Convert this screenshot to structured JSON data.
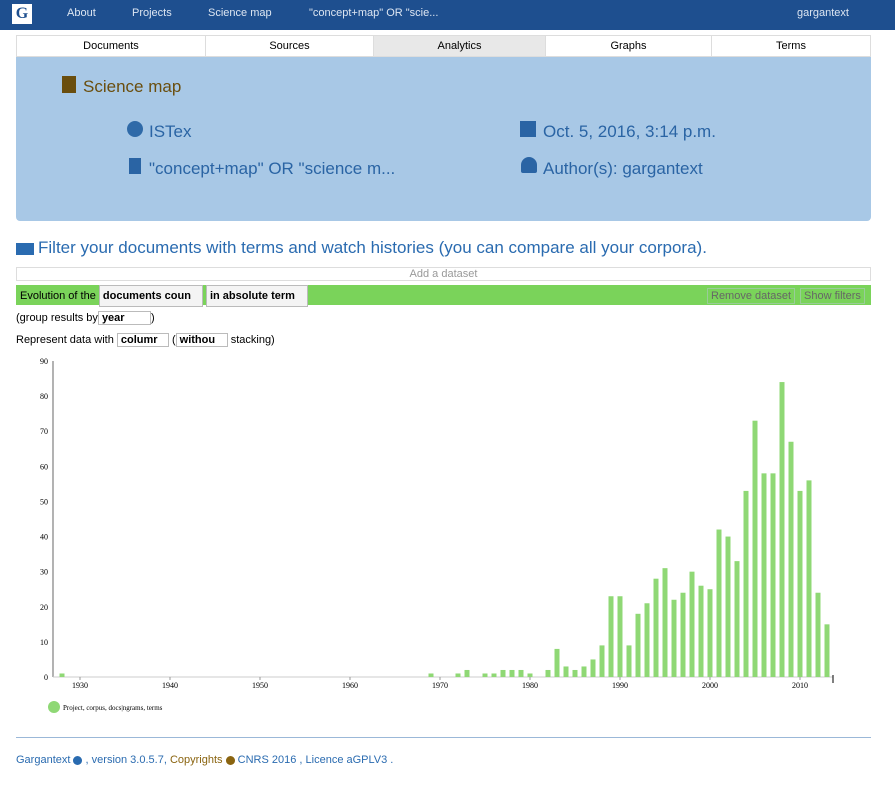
{
  "nav": {
    "brand": "G",
    "items": [
      "About",
      "Projects",
      "Science map",
      "\"concept+map\" OR \"scie..."
    ],
    "user": "gargantext"
  },
  "tabs": [
    "Documents",
    "Sources",
    "Analytics",
    "Graphs",
    "Terms"
  ],
  "panel": {
    "title": "Science map",
    "source": "ISTex",
    "date": "Oct. 5, 2016, 3:14 p.m.",
    "query": "\"concept+map\" OR \"science m...",
    "authors": "Author(s): gargantext"
  },
  "filter": {
    "heading": "Filter your documents with terms and watch histories (you can compare all your corpora).",
    "add": "Add a dataset",
    "evolution": "Evolution of the",
    "measure": "documents coun",
    "mode": "in absolute term",
    "remove": "Remove dataset",
    "show": "Show filters",
    "group_prefix": "(group results by",
    "group": "year",
    "group_suffix": ")",
    "represent": "Represent data with",
    "chart_kind": "columr",
    "open": "(",
    "stacking": "withou",
    "stack_suffix": "stacking)"
  },
  "chart_data": {
    "type": "bar",
    "color": "#8fd875",
    "legend": "Project, corpus, docs|ngrams, terms",
    "x": [
      1928,
      1969,
      1972,
      1973,
      1975,
      1976,
      1977,
      1978,
      1979,
      1980,
      1982,
      1983,
      1984,
      1985,
      1986,
      1987,
      1988,
      1989,
      1990,
      1991,
      1992,
      1993,
      1994,
      1995,
      1996,
      1997,
      1998,
      1999,
      2000,
      2001,
      2002,
      2003,
      2004,
      2005,
      2006,
      2007,
      2008,
      2009,
      2010,
      2011,
      2012,
      2013
    ],
    "values": [
      1,
      1,
      1,
      2,
      1,
      1,
      2,
      2,
      2,
      1,
      2,
      8,
      3,
      2,
      3,
      5,
      9,
      23,
      23,
      9,
      18,
      21,
      28,
      31,
      22,
      24,
      30,
      26,
      25,
      42,
      40,
      33,
      53,
      73,
      58,
      58,
      84,
      67,
      53,
      56,
      24,
      15
    ],
    "xlim": [
      1927,
      2014
    ],
    "xticks": [
      1930,
      1940,
      1950,
      1960,
      1970,
      1980,
      1990,
      2000,
      2010
    ],
    "ylim": [
      0,
      90
    ],
    "yticks": [
      0,
      10,
      20,
      30,
      40,
      50,
      60,
      70,
      80,
      90
    ]
  },
  "footer": {
    "brand": "Gargantext",
    "version": ", version 3.0.5.7,",
    "copy": "Copyrights",
    "cnrs": "CNRS 2016",
    "licence": ", Licence aGPLV3 ."
  }
}
